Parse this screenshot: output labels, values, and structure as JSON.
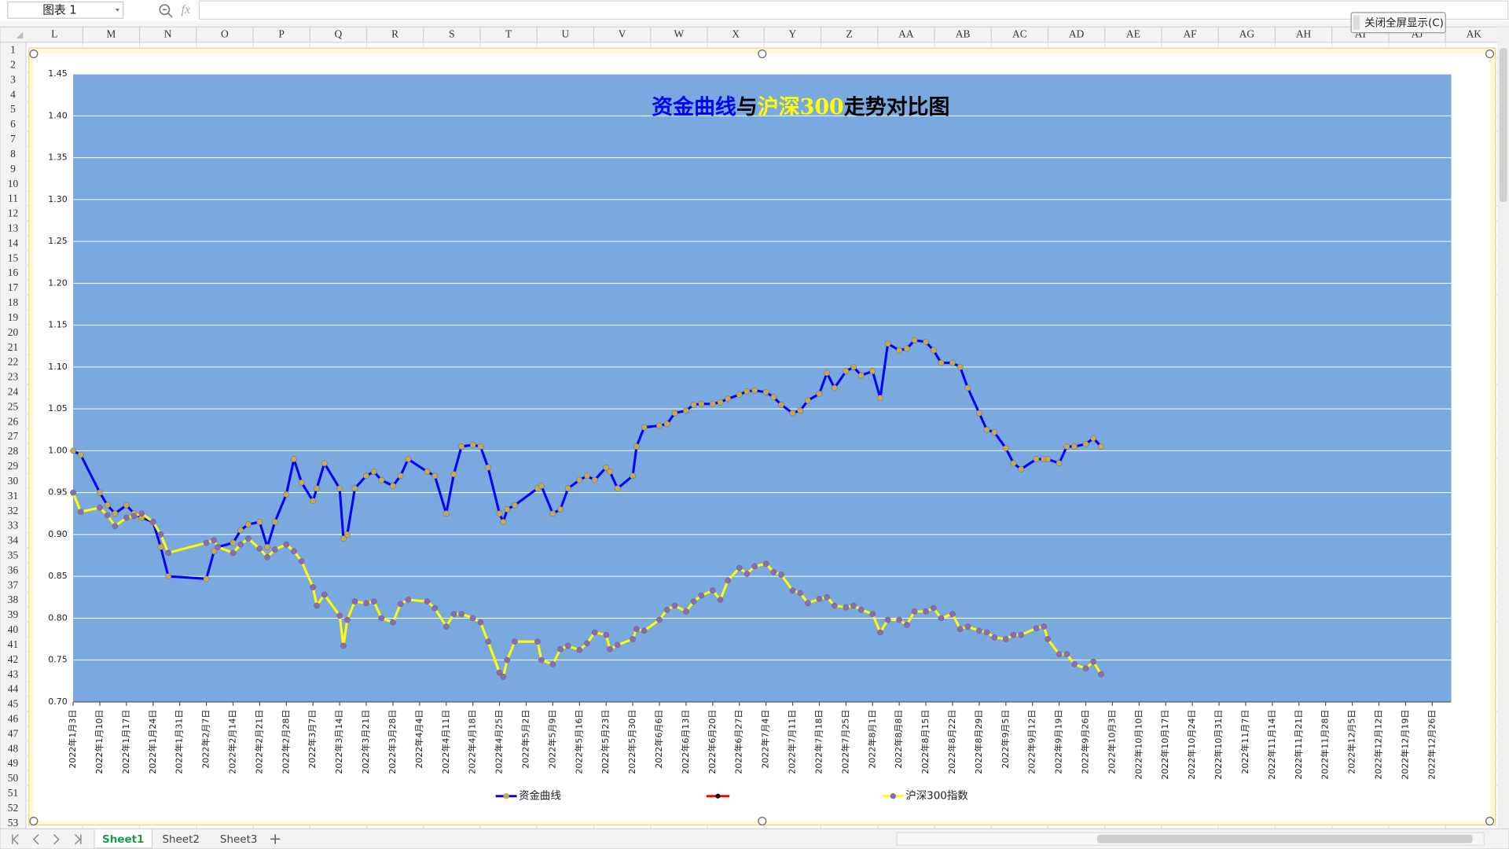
{
  "ui": {
    "name_box": "图表 1",
    "fx": "fx",
    "button": "关闭全屏显示(C)",
    "columns": [
      "L",
      "M",
      "N",
      "O",
      "P",
      "Q",
      "R",
      "S",
      "T",
      "U",
      "V",
      "W",
      "X",
      "Y",
      "Z",
      "AA",
      "AB",
      "AC",
      "AD",
      "AE",
      "AF",
      "AG",
      "AH",
      "AI",
      "AJ",
      "AK"
    ],
    "rows": [
      1,
      2,
      3,
      4,
      5,
      6,
      7,
      8,
      9,
      10,
      11,
      12,
      13,
      14,
      15,
      16,
      17,
      18,
      19,
      20,
      21,
      22,
      23,
      24,
      25,
      26,
      27,
      28,
      29,
      30,
      31,
      32,
      33,
      34,
      35,
      36,
      37,
      38,
      39,
      40,
      41,
      42,
      43,
      44,
      45,
      46,
      47,
      48,
      49,
      50,
      51,
      52,
      53
    ],
    "sheets": [
      "Sheet1",
      "Sheet2",
      "Sheet3"
    ]
  },
  "chart_data": {
    "type": "line",
    "title_runs": [
      {
        "text": "资金曲线",
        "color": "#0000ff"
      },
      {
        "text": "与",
        "color": "#000000"
      },
      {
        "text": "沪深300",
        "color": "#ffff00"
      },
      {
        "text": "走势对比图",
        "color": "#000000"
      }
    ],
    "x": [
      "2022-01-03",
      "2022-01-05",
      "2022-01-10",
      "2022-01-12",
      "2022-01-14",
      "2022-01-17",
      "2022-01-19",
      "2022-01-21",
      "2022-01-24",
      "2022-01-26",
      "2022-01-28",
      "2022-02-07",
      "2022-02-09",
      "2022-02-10",
      "2022-02-14",
      "2022-02-16",
      "2022-02-18",
      "2022-02-21",
      "2022-02-23",
      "2022-02-25",
      "2022-02-28",
      "2022-03-02",
      "2022-03-04",
      "2022-03-07",
      "2022-03-08",
      "2022-03-10",
      "2022-03-14",
      "2022-03-15",
      "2022-03-16",
      "2022-03-18",
      "2022-03-21",
      "2022-03-23",
      "2022-03-25",
      "2022-03-28",
      "2022-03-30",
      "2022-04-01",
      "2022-04-06",
      "2022-04-08",
      "2022-04-11",
      "2022-04-13",
      "2022-04-15",
      "2022-04-18",
      "2022-04-20",
      "2022-04-22",
      "2022-04-25",
      "2022-04-26",
      "2022-04-27",
      "2022-04-29",
      "2022-05-05",
      "2022-05-06",
      "2022-05-09",
      "2022-05-11",
      "2022-05-13",
      "2022-05-16",
      "2022-05-18",
      "2022-05-20",
      "2022-05-23",
      "2022-05-24",
      "2022-05-26",
      "2022-05-30",
      "2022-05-31",
      "2022-06-02",
      "2022-06-06",
      "2022-06-08",
      "2022-06-10",
      "2022-06-13",
      "2022-06-15",
      "2022-06-17",
      "2022-06-20",
      "2022-06-22",
      "2022-06-24",
      "2022-06-27",
      "2022-06-29",
      "2022-07-01",
      "2022-07-04",
      "2022-07-06",
      "2022-07-08",
      "2022-07-11",
      "2022-07-13",
      "2022-07-15",
      "2022-07-18",
      "2022-07-20",
      "2022-07-22",
      "2022-07-25",
      "2022-07-27",
      "2022-07-29",
      "2022-08-01",
      "2022-08-03",
      "2022-08-05",
      "2022-08-08",
      "2022-08-10",
      "2022-08-12",
      "2022-08-15",
      "2022-08-17",
      "2022-08-19",
      "2022-08-22",
      "2022-08-24",
      "2022-08-26",
      "2022-08-29",
      "2022-08-31",
      "2022-09-02",
      "2022-09-05",
      "2022-09-07",
      "2022-09-09",
      "2022-09-13",
      "2022-09-15",
      "2022-09-16",
      "2022-09-19",
      "2022-09-21",
      "2022-09-23",
      "2022-09-26",
      "2022-09-28",
      "2022-09-30"
    ],
    "series": [
      {
        "name": "资金曲线",
        "color": "#0000ff",
        "marker_color": "#c8a850",
        "values": [
          1,
          0.995,
          0.95,
          0.935,
          0.925,
          0.935,
          0.925,
          0.92,
          0.915,
          0.885,
          0.85,
          0.847,
          0.88,
          0.885,
          0.89,
          0.905,
          0.912,
          0.915,
          0.885,
          0.915,
          0.948,
          0.99,
          0.962,
          0.94,
          0.955,
          0.985,
          0.955,
          0.895,
          0.9,
          0.955,
          0.97,
          0.975,
          0.965,
          0.958,
          0.97,
          0.99,
          0.975,
          0.97,
          0.925,
          0.972,
          1.005,
          1.007,
          1.005,
          0.98,
          0.925,
          0.915,
          0.93,
          0.935,
          0.955,
          0.958,
          0.925,
          0.93,
          0.955,
          0.965,
          0.97,
          0.965,
          0.98,
          0.975,
          0.955,
          0.97,
          1.005,
          1.028,
          1.03,
          1.032,
          1.045,
          1.048,
          1.055,
          1.056,
          1.056,
          1.058,
          1.062,
          1.067,
          1.071,
          1.072,
          1.07,
          1.064,
          1.055,
          1.045,
          1.048,
          1.06,
          1.068,
          1.093,
          1.075,
          1.095,
          1.1,
          1.09,
          1.095,
          1.063,
          1.128,
          1.12,
          1.122,
          1.132,
          1.13,
          1.12,
          1.105,
          1.105,
          1.1,
          1.075,
          1.045,
          1.025,
          1.022,
          1.003,
          0.985,
          0.978,
          0.99,
          0.99,
          0.99,
          0.985,
          1.005,
          1.005,
          1.008,
          1.015,
          1.005
        ]
      },
      {
        "name": "沪深300指数",
        "color": "#ffff00",
        "marker_color": "#8e6bb0",
        "values": [
          0.95,
          0.927,
          0.932,
          0.923,
          0.91,
          0.92,
          0.922,
          0.925,
          0.915,
          0.9,
          0.878,
          0.89,
          0.893,
          0.885,
          0.878,
          0.888,
          0.895,
          0.883,
          0.873,
          0.882,
          0.888,
          0.88,
          0.868,
          0.837,
          0.815,
          0.828,
          0.803,
          0.767,
          0.798,
          0.82,
          0.818,
          0.82,
          0.8,
          0.795,
          0.817,
          0.822,
          0.82,
          0.812,
          0.79,
          0.805,
          0.805,
          0.8,
          0.795,
          0.772,
          0.735,
          0.73,
          0.75,
          0.772,
          0.772,
          0.75,
          0.745,
          0.763,
          0.767,
          0.762,
          0.77,
          0.783,
          0.78,
          0.763,
          0.768,
          0.775,
          0.787,
          0.785,
          0.798,
          0.81,
          0.815,
          0.808,
          0.82,
          0.827,
          0.833,
          0.822,
          0.845,
          0.86,
          0.853,
          0.862,
          0.865,
          0.855,
          0.852,
          0.833,
          0.83,
          0.818,
          0.823,
          0.825,
          0.815,
          0.813,
          0.815,
          0.81,
          0.805,
          0.783,
          0.798,
          0.798,
          0.792,
          0.808,
          0.808,
          0.812,
          0.8,
          0.805,
          0.787,
          0.79,
          0.785,
          0.783,
          0.777,
          0.775,
          0.78,
          0.78,
          0.788,
          0.79,
          0.775,
          0.757,
          0.757,
          0.745,
          0.74,
          0.748,
          0.733
        ]
      }
    ],
    "xlim": [
      "2022-01-03",
      "2022-12-31"
    ],
    "xticks": [
      {
        "value": "2022-01-03",
        "label": "2022年1月3日"
      },
      {
        "value": "2022-01-10",
        "label": "2022年1月10日"
      },
      {
        "value": "2022-01-17",
        "label": "2022年1月17日"
      },
      {
        "value": "2022-01-24",
        "label": "2022年1月24日"
      },
      {
        "value": "2022-01-31",
        "label": "2022年1月31日"
      },
      {
        "value": "2022-02-07",
        "label": "2022年2月7日"
      },
      {
        "value": "2022-02-14",
        "label": "2022年2月14日"
      },
      {
        "value": "2022-02-21",
        "label": "2022年2月21日"
      },
      {
        "value": "2022-02-28",
        "label": "2022年2月28日"
      },
      {
        "value": "2022-03-07",
        "label": "2022年3月7日"
      },
      {
        "value": "2022-03-14",
        "label": "2022年3月14日"
      },
      {
        "value": "2022-03-21",
        "label": "2022年3月21日"
      },
      {
        "value": "2022-03-28",
        "label": "2022年3月28日"
      },
      {
        "value": "2022-04-04",
        "label": "2022年4月4日"
      },
      {
        "value": "2022-04-11",
        "label": "2022年4月11日"
      },
      {
        "value": "2022-04-18",
        "label": "2022年4月18日"
      },
      {
        "value": "2022-04-25",
        "label": "2022年4月25日"
      },
      {
        "value": "2022-05-02",
        "label": "2022年5月2日"
      },
      {
        "value": "2022-05-09",
        "label": "2022年5月9日"
      },
      {
        "value": "2022-05-16",
        "label": "2022年5月16日"
      },
      {
        "value": "2022-05-23",
        "label": "2022年5月23日"
      },
      {
        "value": "2022-05-30",
        "label": "2022年5月30日"
      },
      {
        "value": "2022-06-06",
        "label": "2022年6月6日"
      },
      {
        "value": "2022-06-13",
        "label": "2022年6月13日"
      },
      {
        "value": "2022-06-20",
        "label": "2022年6月20日"
      },
      {
        "value": "2022-06-27",
        "label": "2022年6月27日"
      },
      {
        "value": "2022-07-04",
        "label": "2022年7月4日"
      },
      {
        "value": "2022-07-11",
        "label": "2022年7月11日"
      },
      {
        "value": "2022-07-18",
        "label": "2022年7月18日"
      },
      {
        "value": "2022-07-25",
        "label": "2022年7月25日"
      },
      {
        "value": "2022-08-01",
        "label": "2022年8月1日"
      },
      {
        "value": "2022-08-08",
        "label": "2022年8月8日"
      },
      {
        "value": "2022-08-15",
        "label": "2022年8月15日"
      },
      {
        "value": "2022-08-22",
        "label": "2022年8月22日"
      },
      {
        "value": "2022-08-29",
        "label": "2022年8月29日"
      },
      {
        "value": "2022-09-05",
        "label": "2022年9月5日"
      },
      {
        "value": "2022-09-12",
        "label": "2022年9月12日"
      },
      {
        "value": "2022-09-19",
        "label": "2022年9月19日"
      },
      {
        "value": "2022-09-26",
        "label": "2022年9月26日"
      },
      {
        "value": "2022-10-03",
        "label": "2022年10月3日"
      },
      {
        "value": "2022-10-10",
        "label": "2022年10月10日"
      },
      {
        "value": "2022-10-17",
        "label": "2022年10月17日"
      },
      {
        "value": "2022-10-24",
        "label": "2022年10月24日"
      },
      {
        "value": "2022-10-31",
        "label": "2022年10月31日"
      },
      {
        "value": "2022-11-07",
        "label": "2022年11月7日"
      },
      {
        "value": "2022-11-14",
        "label": "2022年11月14日"
      },
      {
        "value": "2022-11-21",
        "label": "2022年11月21日"
      },
      {
        "value": "2022-11-28",
        "label": "2022年11月28日"
      },
      {
        "value": "2022-12-05",
        "label": "2022年12月5日"
      },
      {
        "value": "2022-12-12",
        "label": "2022年12月12日"
      },
      {
        "value": "2022-12-19",
        "label": "2022年12月19日"
      },
      {
        "value": "2022-12-26",
        "label": "2022年12月26日"
      }
    ],
    "ylim": [
      0.7,
      1.45
    ],
    "yticks": [
      {
        "value": 0.7,
        "label": "0.70"
      },
      0.75,
      {
        "value": 0.8,
        "label": "0.80"
      },
      0.85,
      {
        "value": 0.9,
        "label": "0.90"
      },
      0.95,
      {
        "value": 1,
        "label": "1.00"
      },
      1.05,
      {
        "value": 1.1,
        "label": "1.10"
      },
      1.15,
      {
        "value": 1.2,
        "label": "1.20"
      },
      1.25,
      {
        "value": 1.3,
        "label": "1.30"
      },
      1.35,
      {
        "value": 1.4,
        "label": "1.40"
      },
      1.45
    ],
    "grid": true,
    "plot_color": "#79a9df"
  }
}
